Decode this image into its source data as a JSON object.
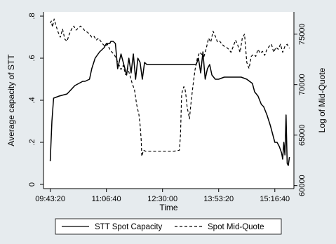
{
  "chart_data": {
    "type": "line",
    "xlabel": "Time",
    "ylabel_left": "Average capacity of STT",
    "ylabel_right": "Log of Mid-Quote",
    "x_ticks": [
      "09:43:20",
      "11:06:40",
      "12:30:00",
      "13:53:20",
      "15:16:40"
    ],
    "x_tick_seconds": [
      35000,
      40000,
      45000,
      50000,
      55000
    ],
    "xlim_seconds": [
      34400,
      56700
    ],
    "y_left_ticks": [
      "0",
      ".2",
      ".4",
      ".6",
      ".8"
    ],
    "y_left_tick_values": [
      0,
      0.2,
      0.4,
      0.6,
      0.8
    ],
    "ylim_left": [
      -0.02,
      0.82
    ],
    "y_right_ticks": [
      "60000",
      "65000",
      "70000",
      "75000"
    ],
    "y_right_tick_values": [
      60000,
      65000,
      70000,
      75000
    ],
    "ylim_right": [
      59700,
      77200
    ],
    "legend_position": "bottom",
    "grid": false,
    "series": [
      {
        "name": "STT Spot Capacity",
        "axis": "left",
        "style": "solid",
        "x": [
          35000,
          35150,
          35300,
          35800,
          36500,
          37200,
          37900,
          38100,
          38500,
          38700,
          39000,
          39400,
          39800,
          40000,
          40300,
          40400,
          40600,
          40800,
          41000,
          41300,
          41500,
          41800,
          42000,
          42200,
          42400,
          42600,
          42800,
          43000,
          43200,
          43400,
          43600,
          44000,
          45000,
          46000,
          47000,
          48000,
          48200,
          48400,
          48600,
          48800,
          49000,
          49200,
          49400,
          49700,
          50000,
          50500,
          51000,
          51500,
          52000,
          52500,
          53000,
          53200,
          53500,
          53800,
          54000,
          54300,
          54600,
          54900,
          55000,
          55200,
          55400,
          55600,
          55700,
          55800,
          55900,
          56000,
          56100,
          56200,
          56300
        ],
        "values": [
          0.11,
          0.3,
          0.41,
          0.42,
          0.43,
          0.47,
          0.49,
          0.49,
          0.5,
          0.55,
          0.6,
          0.63,
          0.65,
          0.67,
          0.67,
          0.68,
          0.68,
          0.67,
          0.55,
          0.62,
          0.58,
          0.52,
          0.6,
          0.53,
          0.62,
          0.5,
          0.6,
          0.58,
          0.5,
          0.58,
          0.57,
          0.57,
          0.57,
          0.57,
          0.57,
          0.57,
          0.6,
          0.53,
          0.63,
          0.5,
          0.55,
          0.57,
          0.52,
          0.5,
          0.5,
          0.51,
          0.51,
          0.51,
          0.51,
          0.5,
          0.48,
          0.44,
          0.42,
          0.38,
          0.37,
          0.33,
          0.28,
          0.22,
          0.2,
          0.2,
          0.18,
          0.15,
          0.12,
          0.2,
          0.14,
          0.33,
          0.1,
          0.09,
          0.13
        ]
      },
      {
        "name": "Spot Mid-Quote",
        "axis": "right",
        "style": "dashed",
        "x": [
          35000,
          35100,
          35200,
          35350,
          35500,
          35700,
          35900,
          36100,
          36300,
          36500,
          36700,
          36900,
          37100,
          37300,
          37500,
          37700,
          37900,
          38100,
          38300,
          38500,
          38700,
          38900,
          39100,
          39300,
          39500,
          39700,
          39900,
          40100,
          40300,
          40500,
          40700,
          40900,
          41100,
          41300,
          41500,
          41700,
          41900,
          42100,
          42300,
          42500,
          42700,
          42900,
          43000,
          43100,
          43150,
          43300,
          43500,
          44000,
          45000,
          46000,
          46500,
          46600,
          46700,
          46800,
          46900,
          47000,
          47100,
          47200,
          47300,
          47400,
          47500,
          47700,
          47900,
          48100,
          48300,
          48500,
          48700,
          48900,
          49100,
          49300,
          49500,
          49700,
          49900,
          50100,
          50300,
          50500,
          50700,
          50900,
          51100,
          51300,
          51500,
          51700,
          51900,
          52100,
          52300,
          52500,
          52700,
          52900,
          53100,
          53300,
          53500,
          53700,
          53900,
          54100,
          54300,
          54500,
          54700,
          54900,
          55100,
          55300,
          55500,
          55700,
          55900,
          56100,
          56300
        ],
        "values": [
          76100,
          76300,
          75700,
          76500,
          75900,
          75200,
          74700,
          75500,
          74500,
          74300,
          75000,
          75500,
          75800,
          75400,
          75600,
          75800,
          75600,
          75300,
          75200,
          75000,
          74700,
          74800,
          74400,
          74600,
          74300,
          74000,
          73800,
          74000,
          73500,
          73200,
          73000,
          72500,
          72000,
          71500,
          71900,
          71000,
          71600,
          70900,
          70100,
          69500,
          68000,
          67000,
          66000,
          64500,
          62900,
          63500,
          63400,
          63400,
          63400,
          63400,
          63500,
          65000,
          69000,
          69500,
          69800,
          69600,
          68800,
          67700,
          67200,
          66600,
          67800,
          69800,
          71500,
          72600,
          73200,
          73000,
          72800,
          73600,
          74600,
          74200,
          75300,
          74800,
          74200,
          74300,
          74000,
          73800,
          73700,
          73500,
          73200,
          73800,
          74400,
          73900,
          73200,
          74600,
          75000,
          72200,
          71600,
          72800,
          73000,
          72800,
          73500,
          73100,
          73300,
          72900,
          73500,
          73800,
          74000,
          73200,
          73700,
          73500,
          74000,
          73200,
          73800,
          74000,
          73600
        ]
      }
    ]
  }
}
